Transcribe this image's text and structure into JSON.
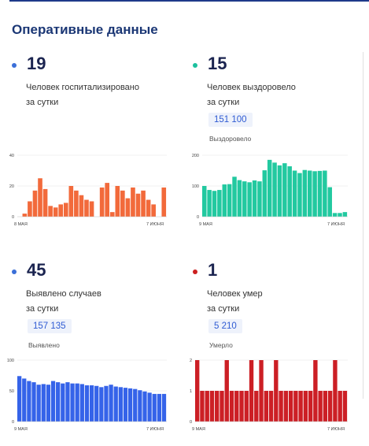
{
  "title": "Оперативные данные",
  "cards": [
    {
      "number": "19",
      "desc": "Человек госпитализировано\nза сутки",
      "dot_color": "#3b6fd8",
      "bar_color": "#f26a3b",
      "chart_data": {
        "type": "bar",
        "x_start_label": "8 МАЯ",
        "x_end_label": "7 ИЮНЯ",
        "y_ticks": [
          "0",
          "20",
          "40"
        ],
        "ylim": [
          0,
          40
        ],
        "values": [
          0,
          2,
          10,
          17,
          25,
          18,
          7,
          6,
          8,
          9,
          20,
          17,
          14,
          11,
          10,
          0,
          19,
          22,
          3,
          20,
          17,
          12,
          19,
          15,
          17,
          11,
          8,
          0,
          19
        ]
      }
    },
    {
      "number": "15",
      "desc": "Человек выздоровело\nза сутки",
      "total": "151 100",
      "total_label": "Выздоровело",
      "dot_color": "#1cc09e",
      "bar_color": "#22c9a0",
      "chart_data": {
        "type": "bar",
        "x_start_label": "9 МАЯ",
        "x_end_label": "7 ИЮНЯ",
        "y_ticks": [
          "0",
          "100",
          "200"
        ],
        "ylim": [
          0,
          200
        ],
        "values": [
          100,
          87,
          84,
          87,
          105,
          106,
          130,
          119,
          115,
          112,
          118,
          115,
          151,
          185,
          176,
          167,
          174,
          164,
          150,
          142,
          152,
          150,
          148,
          149,
          150,
          96,
          12,
          12,
          15
        ]
      }
    },
    {
      "number": "45",
      "desc": "Выявлено случаев\nза сутки",
      "total": "157 135",
      "total_label": "Выявлено",
      "dot_color": "#3b6fd8",
      "bar_color": "#3563e9",
      "chart_data": {
        "type": "bar",
        "x_start_label": "9 МАЯ",
        "x_end_label": "7 ИЮНЯ",
        "y_ticks": [
          "0",
          "50",
          "100"
        ],
        "ylim": [
          0,
          100
        ],
        "values": [
          74,
          70,
          66,
          64,
          60,
          61,
          60,
          66,
          64,
          62,
          64,
          62,
          62,
          61,
          59,
          59,
          58,
          56,
          58,
          60,
          57,
          56,
          55,
          54,
          53,
          51,
          49,
          47,
          45,
          45,
          45
        ]
      }
    },
    {
      "number": "1",
      "desc": "Человек умер\nза сутки",
      "total": "5 210",
      "total_label": "Умерло",
      "dot_color": "#cc1f1f",
      "bar_color": "#cc1f25",
      "chart_data": {
        "type": "bar",
        "x_start_label": "9 МАЯ",
        "x_end_label": "7 ИЮНЯ",
        "y_ticks": [
          "0",
          "1",
          "2"
        ],
        "ylim": [
          0,
          2
        ],
        "values": [
          2,
          1,
          1,
          1,
          1,
          1,
          2,
          1,
          1,
          1,
          1,
          2,
          1,
          2,
          1,
          1,
          2,
          1,
          1,
          1,
          1,
          1,
          1,
          1,
          2,
          1,
          1,
          1,
          2,
          1,
          1
        ]
      }
    }
  ]
}
